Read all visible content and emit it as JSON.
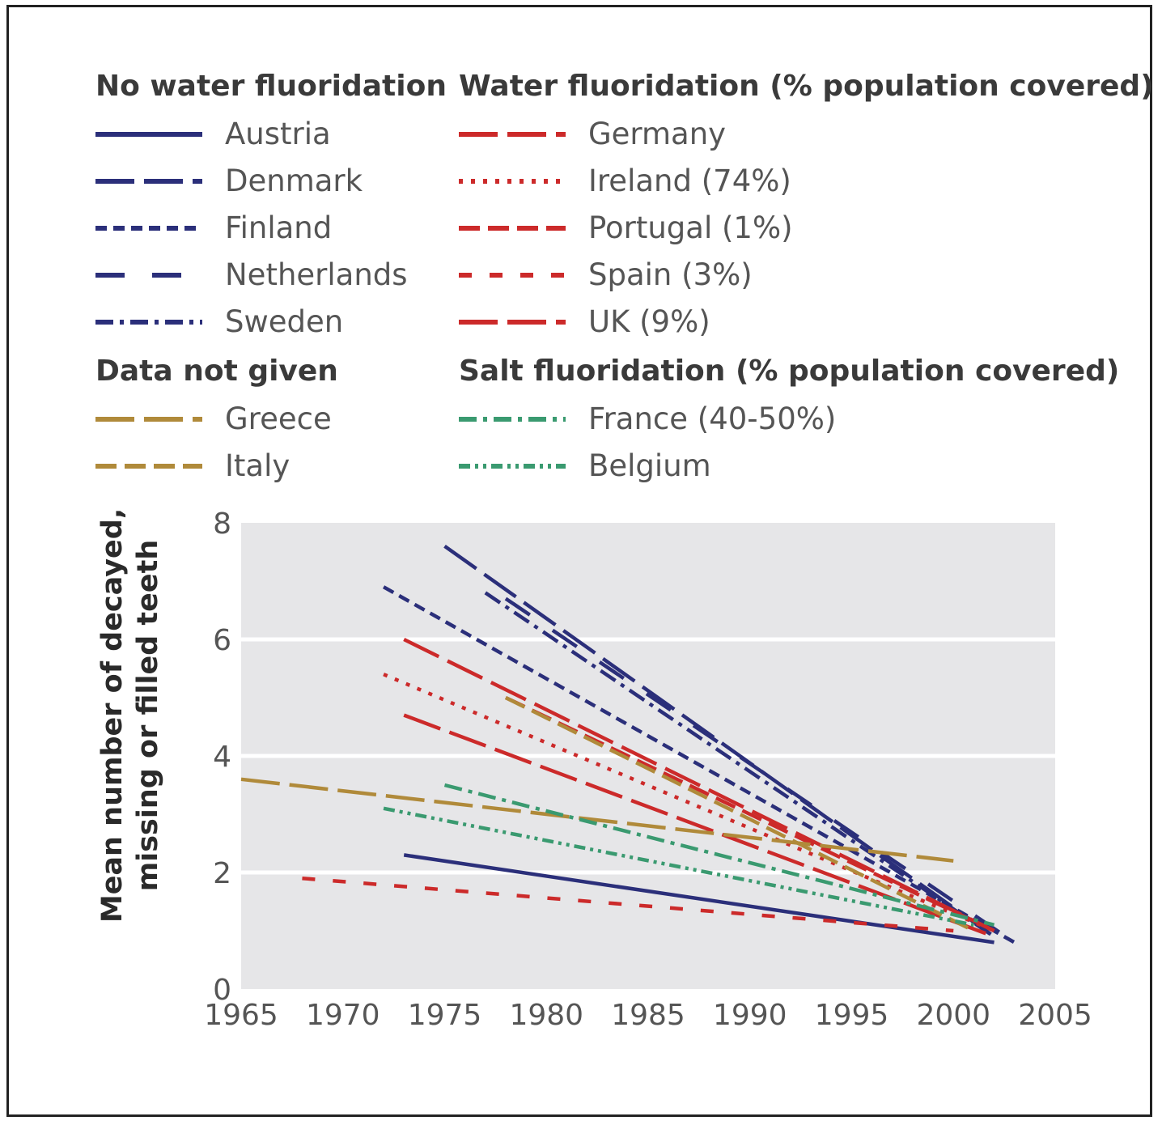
{
  "legend": {
    "groups": [
      {
        "title": "No water fluoridation",
        "items": [
          {
            "label": "Austria",
            "series": "Austria"
          },
          {
            "label": "Denmark",
            "series": "Denmark"
          },
          {
            "label": "Finland",
            "series": "Finland"
          },
          {
            "label": "Netherlands",
            "series": "Netherlands"
          },
          {
            "label": "Sweden",
            "series": "Sweden"
          }
        ]
      },
      {
        "title": "Water fluoridation (% population covered)",
        "items": [
          {
            "label": "Germany",
            "series": "Germany"
          },
          {
            "label": "Ireland (74%)",
            "series": "Ireland"
          },
          {
            "label": "Portugal (1%)",
            "series": "Portugal"
          },
          {
            "label": "Spain (3%)",
            "series": "Spain"
          },
          {
            "label": "UK (9%)",
            "series": "UK"
          }
        ]
      },
      {
        "title": "Data not given",
        "items": [
          {
            "label": "Greece",
            "series": "Greece"
          },
          {
            "label": "Italy",
            "series": "Italy"
          }
        ]
      },
      {
        "title": "Salt fluoridation (% population covered)",
        "items": [
          {
            "label": "France (40-50%)",
            "series": "France"
          },
          {
            "label": "Belgium",
            "series": "Belgium"
          }
        ]
      }
    ]
  },
  "colors": {
    "navy": "#2b2f7a",
    "red": "#cc2a2a",
    "tan": "#b08a3a",
    "green": "#3a9a70",
    "plot_bg": "#e6e6e8",
    "grid": "#ffffff"
  },
  "chart_data": {
    "type": "line",
    "title": "",
    "xlabel": "",
    "ylabel": "Mean number of decayed, missing or filled teeth",
    "xlim": [
      1965,
      2005
    ],
    "ylim": [
      0,
      8
    ],
    "xticks": [
      "1965",
      "1970",
      "1975",
      "1980",
      "1985",
      "1990",
      "1995",
      "2000",
      "2005"
    ],
    "yticks": [
      "0",
      "2",
      "4",
      "6",
      "8"
    ],
    "grid": "horizontal",
    "series": [
      {
        "name": "Austria",
        "color": "#2b2f7a",
        "dash": "solid",
        "x": [
          1973,
          2002
        ],
        "y": [
          2.3,
          0.8
        ]
      },
      {
        "name": "Denmark",
        "color": "#2b2f7a",
        "dash": "long",
        "x": [
          1975,
          2002
        ],
        "y": [
          7.6,
          0.9
        ]
      },
      {
        "name": "Finland",
        "color": "#2b2f7a",
        "dash": "short",
        "x": [
          1972,
          2003
        ],
        "y": [
          6.9,
          0.8
        ]
      },
      {
        "name": "Netherlands",
        "color": "#2b2f7a",
        "dash": "wide",
        "x": [
          1978,
          2003
        ],
        "y": [
          6.7,
          0.8
        ]
      },
      {
        "name": "Sweden",
        "color": "#2b2f7a",
        "dash": "dashdot",
        "x": [
          1977,
          2002
        ],
        "y": [
          6.8,
          0.9
        ]
      },
      {
        "name": "Germany",
        "color": "#cc2a2a",
        "dash": "long",
        "x": [
          1973,
          2002
        ],
        "y": [
          6.0,
          1.0
        ]
      },
      {
        "name": "Ireland",
        "color": "#cc2a2a",
        "dash": "dot",
        "x": [
          1972,
          2002
        ],
        "y": [
          5.4,
          1.0
        ]
      },
      {
        "name": "Portugal",
        "color": "#cc2a2a",
        "dash": "medium",
        "x": [
          1978,
          2002
        ],
        "y": [
          5.0,
          1.0
        ]
      },
      {
        "name": "Spain",
        "color": "#cc2a2a",
        "dash": "spaced",
        "x": [
          1968,
          2000
        ],
        "y": [
          1.9,
          1.0
        ]
      },
      {
        "name": "UK",
        "color": "#cc2a2a",
        "dash": "long",
        "x": [
          1973,
          2002
        ],
        "y": [
          4.7,
          0.9
        ]
      },
      {
        "name": "Greece",
        "color": "#b08a3a",
        "dash": "long",
        "x": [
          1965,
          2000
        ],
        "y": [
          3.6,
          2.2
        ]
      },
      {
        "name": "Italy",
        "color": "#b08a3a",
        "dash": "medium",
        "x": [
          1978,
          2001
        ],
        "y": [
          5.0,
          1.0
        ]
      },
      {
        "name": "France",
        "color": "#3a9a70",
        "dash": "dashdot",
        "x": [
          1975,
          2002
        ],
        "y": [
          3.5,
          1.1
        ]
      },
      {
        "name": "Belgium",
        "color": "#3a9a70",
        "dash": "dashdotdot",
        "x": [
          1972,
          2001
        ],
        "y": [
          3.1,
          1.1
        ]
      }
    ]
  }
}
